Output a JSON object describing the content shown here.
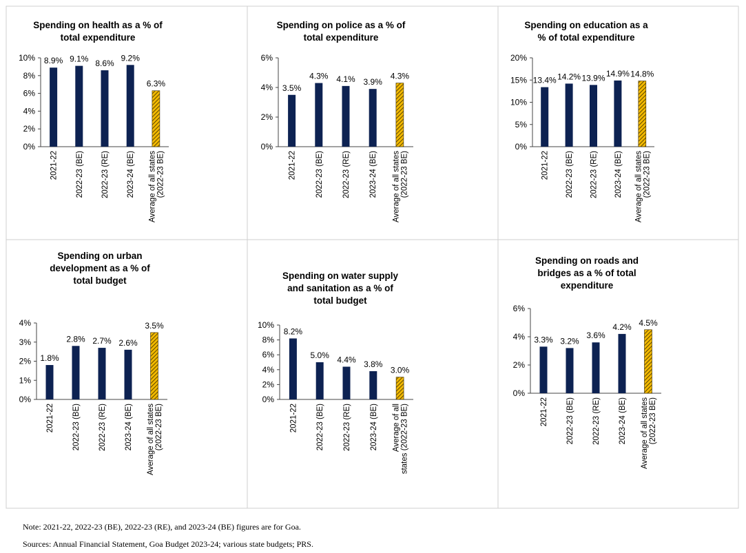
{
  "colors": {
    "bar": "#0d2252",
    "highlight": "#f2b900",
    "hatch": "#3a2a00",
    "axis": "#444444",
    "border": "#cfcfcf"
  },
  "chart_data": [
    {
      "type": "bar",
      "title_lines": [
        "Spending on health as a % of",
        "total expenditure"
      ],
      "categories": [
        "2021-22",
        "2022-23 (BE)",
        "2022-23 (RE)",
        "2023-24 (BE)",
        "Average of all states|(2022-23 BE)"
      ],
      "values": [
        8.9,
        9.1,
        8.6,
        9.2,
        6.3
      ],
      "labels": [
        "8.9%",
        "9.1%",
        "8.6%",
        "9.2%",
        "6.3%"
      ],
      "highlight_last": true,
      "ylim": [
        0,
        10
      ],
      "yticks": [
        0,
        2,
        4,
        6,
        8,
        10
      ],
      "ytick_labels": [
        "0%",
        "2%",
        "4%",
        "6%",
        "8%",
        "10%"
      ]
    },
    {
      "type": "bar",
      "title_lines": [
        "Spending on police as a %  of",
        "total expenditure"
      ],
      "categories": [
        "2021-22",
        "2022-23 (BE)",
        "2022-23 (RE)",
        "2023-24 (BE)",
        "Average of all states|(2022-23 BE)"
      ],
      "values": [
        3.5,
        4.3,
        4.1,
        3.9,
        4.3
      ],
      "labels": [
        "3.5%",
        "4.3%",
        "4.1%",
        "3.9%",
        "4.3%"
      ],
      "highlight_last": true,
      "ylim": [
        0,
        6
      ],
      "yticks": [
        0,
        2,
        4,
        6
      ],
      "ytick_labels": [
        "0%",
        "2%",
        "4%",
        "6%"
      ]
    },
    {
      "type": "bar",
      "title_lines": [
        "Spending on education as a",
        "% of total expenditure"
      ],
      "categories": [
        "2021-22",
        "2022-23 (BE)",
        "2022-23 (RE)",
        "2023-24 (BE)",
        "Average of all states|(2022-23 BE)"
      ],
      "values": [
        13.4,
        14.2,
        13.9,
        14.9,
        14.8
      ],
      "labels": [
        "13.4%",
        "14.2%",
        "13.9%",
        "14.9%",
        "14.8%"
      ],
      "highlight_last": true,
      "ylim": [
        0,
        20
      ],
      "yticks": [
        0,
        5,
        10,
        15,
        20
      ],
      "ytick_labels": [
        "0%",
        "5%",
        "10%",
        "15%",
        "20%"
      ]
    },
    {
      "type": "bar",
      "title_lines": [
        "Spending on urban",
        "development as a % of",
        "total budget"
      ],
      "categories": [
        "2021-22",
        "2022-23 (BE)",
        "2022-23 (RE)",
        "2023-24 (BE)",
        "Average of all states|(2022-23 BE)"
      ],
      "values": [
        1.8,
        2.8,
        2.7,
        2.6,
        3.5
      ],
      "labels": [
        "1.8%",
        "2.8%",
        "2.7%",
        "2.6%",
        "3.5%"
      ],
      "highlight_last": true,
      "ylim": [
        0,
        4
      ],
      "yticks": [
        0,
        1,
        2,
        3,
        4
      ],
      "ytick_labels": [
        "0%",
        "1%",
        "2%",
        "3%",
        "4%"
      ]
    },
    {
      "type": "bar",
      "title_lines": [
        "Spending on water supply",
        "and sanitation as a % of",
        "total budget"
      ],
      "categories": [
        "2021-22",
        "2022-23 (BE)",
        "2022-23 (RE)",
        "2023-24 (BE)",
        "Average of all|states (2022-23 BE)"
      ],
      "values": [
        8.2,
        5.0,
        4.4,
        3.8,
        3.0
      ],
      "labels": [
        "8.2%",
        "5.0%",
        "4.4%",
        "3.8%",
        "3.0%"
      ],
      "highlight_last": true,
      "ylim": [
        0,
        10
      ],
      "yticks": [
        0,
        2,
        4,
        6,
        8,
        10
      ],
      "ytick_labels": [
        "0%",
        "2%",
        "4%",
        "6%",
        "8%",
        "10%"
      ]
    },
    {
      "type": "bar",
      "title_lines": [
        "Spending on roads and",
        "bridges as a % of total",
        "expenditure"
      ],
      "categories": [
        "2021-22",
        "2022-23 (BE)",
        "2022-23 (RE)",
        "2023-24 (BE)",
        "Average of all states|(2022-23 BE)"
      ],
      "values": [
        3.3,
        3.2,
        3.6,
        4.2,
        4.5
      ],
      "labels": [
        "3.3%",
        "3.2%",
        "3.6%",
        "4.2%",
        "4.5%"
      ],
      "highlight_last": true,
      "ylim": [
        0,
        6
      ],
      "yticks": [
        0,
        2,
        4,
        6
      ],
      "ytick_labels": [
        "0%",
        "2%",
        "4%",
        "6%"
      ]
    }
  ],
  "notes": {
    "note": "Note: 2021-22, 2022-23 (BE), 2022-23 (RE), and 2023-24 (BE) figures are for Goa.",
    "sources": "Sources: Annual Financial Statement, Goa Budget 2023-24; various state budgets; PRS."
  }
}
